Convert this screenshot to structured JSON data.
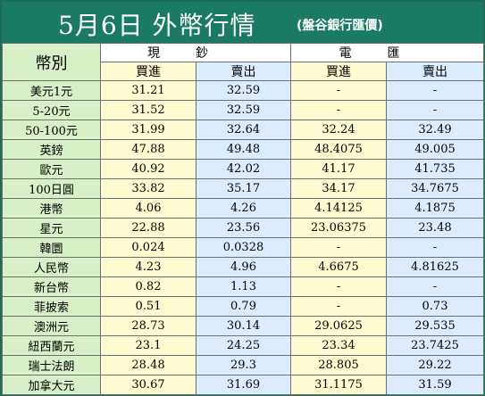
{
  "title": "5月6日 外幣行情",
  "subtitle": "(盤谷銀行匯價)",
  "header": {
    "currency": "幣別",
    "cash": "現鈔",
    "telegraphic": "電匯",
    "buy": "買進",
    "sell": "賣出"
  },
  "rows": [
    {
      "name": "美元1元",
      "cash_buy": "31.21",
      "cash_sell": "32.59",
      "tt_buy": "-",
      "tt_sell": "-"
    },
    {
      "name": "5-20元",
      "cash_buy": "31.52",
      "cash_sell": "32.59",
      "tt_buy": "-",
      "tt_sell": "-"
    },
    {
      "name": "50-100元",
      "cash_buy": "31.99",
      "cash_sell": "32.64",
      "tt_buy": "32.24",
      "tt_sell": "32.49"
    },
    {
      "name": "英鎊",
      "cash_buy": "47.88",
      "cash_sell": "49.48",
      "tt_buy": "48.4075",
      "tt_sell": "49.005"
    },
    {
      "name": "歐元",
      "cash_buy": "40.92",
      "cash_sell": "42.02",
      "tt_buy": "41.17",
      "tt_sell": "41.735"
    },
    {
      "name": "100日圓",
      "cash_buy": "33.82",
      "cash_sell": "35.17",
      "tt_buy": "34.17",
      "tt_sell": "34.7675"
    },
    {
      "name": "港幣",
      "cash_buy": "4.06",
      "cash_sell": "4.26",
      "tt_buy": "4.14125",
      "tt_sell": "4.1875"
    },
    {
      "name": "星元",
      "cash_buy": "22.88",
      "cash_sell": "23.56",
      "tt_buy": "23.06375",
      "tt_sell": "23.48"
    },
    {
      "name": "韓圜",
      "cash_buy": "0.024",
      "cash_sell": "0.0328",
      "tt_buy": "-",
      "tt_sell": "-"
    },
    {
      "name": "人民幣",
      "cash_buy": "4.23",
      "cash_sell": "4.96",
      "tt_buy": "4.6675",
      "tt_sell": "4.81625"
    },
    {
      "name": "新台幣",
      "cash_buy": "0.82",
      "cash_sell": "1.13",
      "tt_buy": "-",
      "tt_sell": "-"
    },
    {
      "name": "菲披索",
      "cash_buy": "0.51",
      "cash_sell": "0.79",
      "tt_buy": "-",
      "tt_sell": "0.73"
    },
    {
      "name": "澳洲元",
      "cash_buy": "28.73",
      "cash_sell": "30.14",
      "tt_buy": "29.0625",
      "tt_sell": "29.535"
    },
    {
      "name": "紐西蘭元",
      "cash_buy": "23.1",
      "cash_sell": "24.25",
      "tt_buy": "23.34",
      "tt_sell": "23.7425"
    },
    {
      "name": "瑞士法朗",
      "cash_buy": "28.48",
      "cash_sell": "29.3",
      "tt_buy": "28.805",
      "tt_sell": "29.22"
    },
    {
      "name": "加拿大元",
      "cash_buy": "30.67",
      "cash_sell": "31.69",
      "tt_buy": "31.1175",
      "tt_sell": "31.59"
    }
  ],
  "colors": {
    "title_bg": "#1b7a63",
    "name_col": "#d8f0c8",
    "buy_col": "#fffbd0",
    "sell_col": "#dcecff"
  }
}
